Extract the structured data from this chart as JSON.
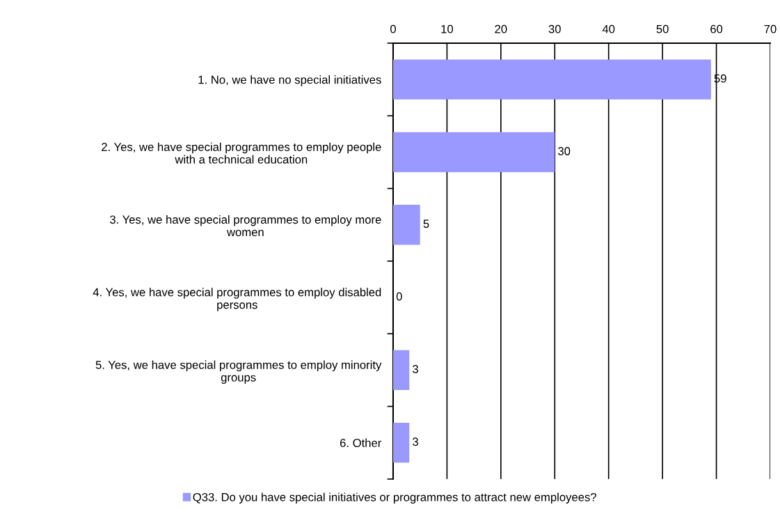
{
  "chart_data": {
    "type": "bar",
    "orientation": "horizontal",
    "categories": [
      "1. No, we have no special initiatives",
      "2. Yes, we have special programmes to employ people\nwith a technical education",
      "3. Yes, we have special programmes to employ more\nwomen",
      "4. Yes, we have special programmes to employ disabled\npersons",
      "5. Yes, we have special programmes to employ minority\ngroups",
      "6. Other"
    ],
    "series": [
      {
        "name": "Q33. Do you have special initiatives or programmes to attract new employees?",
        "color": "#9999ff",
        "values": [
          59,
          30,
          5,
          0,
          3,
          3
        ]
      }
    ],
    "xlim": [
      0,
      70
    ],
    "xticks": [
      0,
      10,
      20,
      30,
      40,
      50,
      60,
      70
    ],
    "grid": "x",
    "legend": "bottom",
    "data_labels": true
  }
}
